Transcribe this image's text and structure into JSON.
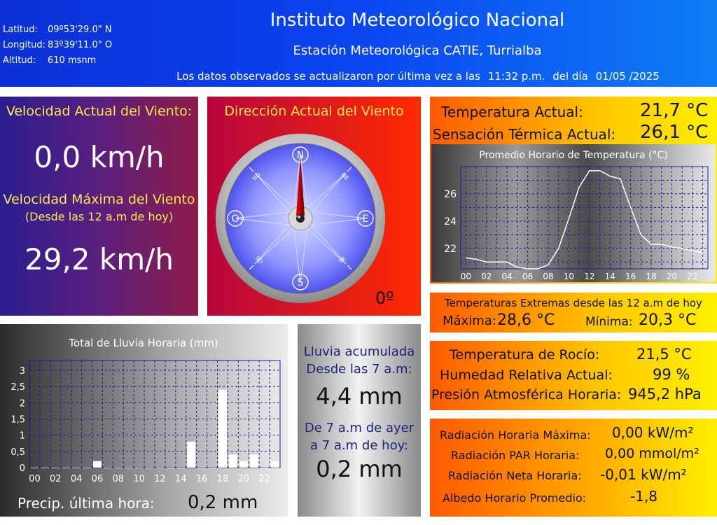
{
  "header": {
    "coords": [
      {
        "label": "Latitud:",
        "value": "09º53'29.0\" N"
      },
      {
        "label": "Longitud:",
        "value": "83º39'11.0\" O"
      },
      {
        "label": "Altitud:",
        "value": "610 msnm"
      }
    ],
    "institute": "Instituto Meteorológico Nacional",
    "station": "Estación Meteorológica CATIE, Turrialba",
    "updated_prefix": "Los datos observados se actualizaron por última vez a las",
    "updated_time": "11:32 p.m.",
    "updated_mid": "del día",
    "updated_date": "01/05 /2025",
    "colors": {
      "header_start": "#0a2fd6",
      "header_end": "#0f7cf5"
    }
  },
  "wind": {
    "current_label": "Velocidad Actual del Viento:",
    "current_value": "0,0 km/h",
    "max_label": "Velocidad Máxima del Viento",
    "max_sublabel": "(Desde las 12 a.m de hoy)",
    "max_value": "29,2 km/h",
    "direction_label": "Dirección Actual del Viento",
    "direction_value": "0º",
    "direction_degrees": 0,
    "compass": {
      "n": "N",
      "s": "S",
      "e": "E",
      "o": "O",
      "ne": "NE",
      "no": "NO",
      "se": "SE",
      "so": "SO"
    }
  },
  "temperature": {
    "current_label": "Temperatura Actual:",
    "current_value": "21,7 °C",
    "feels_label": "Sensación Térmica Actual:",
    "feels_value": "26,1 °C",
    "extremes_title": "Temperaturas Extremas desde las 12 a.m de hoy",
    "max_label": "Máxima:",
    "max_value": "28,6 °C",
    "min_label": "Mínima:",
    "min_value": "20,3 °C"
  },
  "humidity": {
    "dew_label": "Temperatura de Rocío:",
    "dew_value": "21,5 °C",
    "rh_label": "Humedad Relativa Actual:",
    "rh_value": "99 %",
    "pressure_label": "Presión Atmosférica Horaria:",
    "pressure_value": "945,2 hPa"
  },
  "radiation": {
    "rows": [
      {
        "label": "Radiación Horaria Máxima:",
        "value": "0,00 kW/m²"
      },
      {
        "label": "Radiación PAR Horaria:",
        "value": "0,00 mmol/m²"
      },
      {
        "label": "Radiación Neta Horaria:",
        "value": "-0,01 kW/m²"
      },
      {
        "label": "Albedo Horario Promedio:",
        "value": "-1,8"
      }
    ]
  },
  "rain": {
    "last_hour_label": "Precip. última hora:",
    "last_hour_value": "0,2 mm",
    "acc1_label_line1": "Lluvia acumulada",
    "acc1_label_line2": "Desde las 7 a.m:",
    "acc1_value": "4,4 mm",
    "acc2_label_line1": "De 7 a.m de ayer",
    "acc2_label_line2": "a 7 a.m de hoy:",
    "acc2_value": "0,2 mm"
  },
  "chart_data": [
    {
      "type": "line",
      "title": "Promedio Horario de Temperatura (°C)",
      "x": [
        0,
        1,
        2,
        3,
        4,
        5,
        6,
        7,
        8,
        9,
        10,
        11,
        12,
        13,
        14,
        15,
        16,
        17,
        18,
        19,
        20,
        21,
        22,
        23
      ],
      "y": [
        21.3,
        21.2,
        21.0,
        21.0,
        21.0,
        20.6,
        20.5,
        20.5,
        20.8,
        22.0,
        24.2,
        26.5,
        27.7,
        27.7,
        27.3,
        27.1,
        25.0,
        23.0,
        22.3,
        22.3,
        22.1,
        22.0,
        21.8,
        21.7
      ],
      "xticks": [
        "00",
        "02",
        "04",
        "06",
        "08",
        "10",
        "12",
        "14",
        "16",
        "18",
        "20",
        "22"
      ],
      "yticks": [
        "22",
        "24",
        "26"
      ],
      "ylim": [
        20.5,
        28.0
      ],
      "xlim": [
        -0.5,
        23.5
      ],
      "grid": true,
      "color": "#ffffff"
    },
    {
      "type": "bar",
      "title": "Total de Lluvia Horaria (mm)",
      "categories": [
        "00",
        "01",
        "02",
        "03",
        "04",
        "05",
        "06",
        "07",
        "08",
        "09",
        "10",
        "11",
        "12",
        "13",
        "14",
        "15",
        "16",
        "17",
        "18",
        "19",
        "20",
        "21",
        "22",
        "23"
      ],
      "values": [
        0,
        0,
        0,
        0,
        0,
        0,
        0.2,
        0,
        0,
        0,
        0,
        0,
        0,
        0,
        0,
        0.8,
        0,
        0,
        2.4,
        0.4,
        0.2,
        0.4,
        0,
        0.2
      ],
      "xticks": [
        "00",
        "02",
        "04",
        "06",
        "08",
        "10",
        "12",
        "14",
        "16",
        "18",
        "20",
        "22"
      ],
      "yticks": [
        "0",
        "0,5",
        "1",
        "1,5",
        "2",
        "2,5",
        "3"
      ],
      "ylim": [
        0,
        3.3
      ],
      "grid": true,
      "color": "#ffffff"
    }
  ]
}
